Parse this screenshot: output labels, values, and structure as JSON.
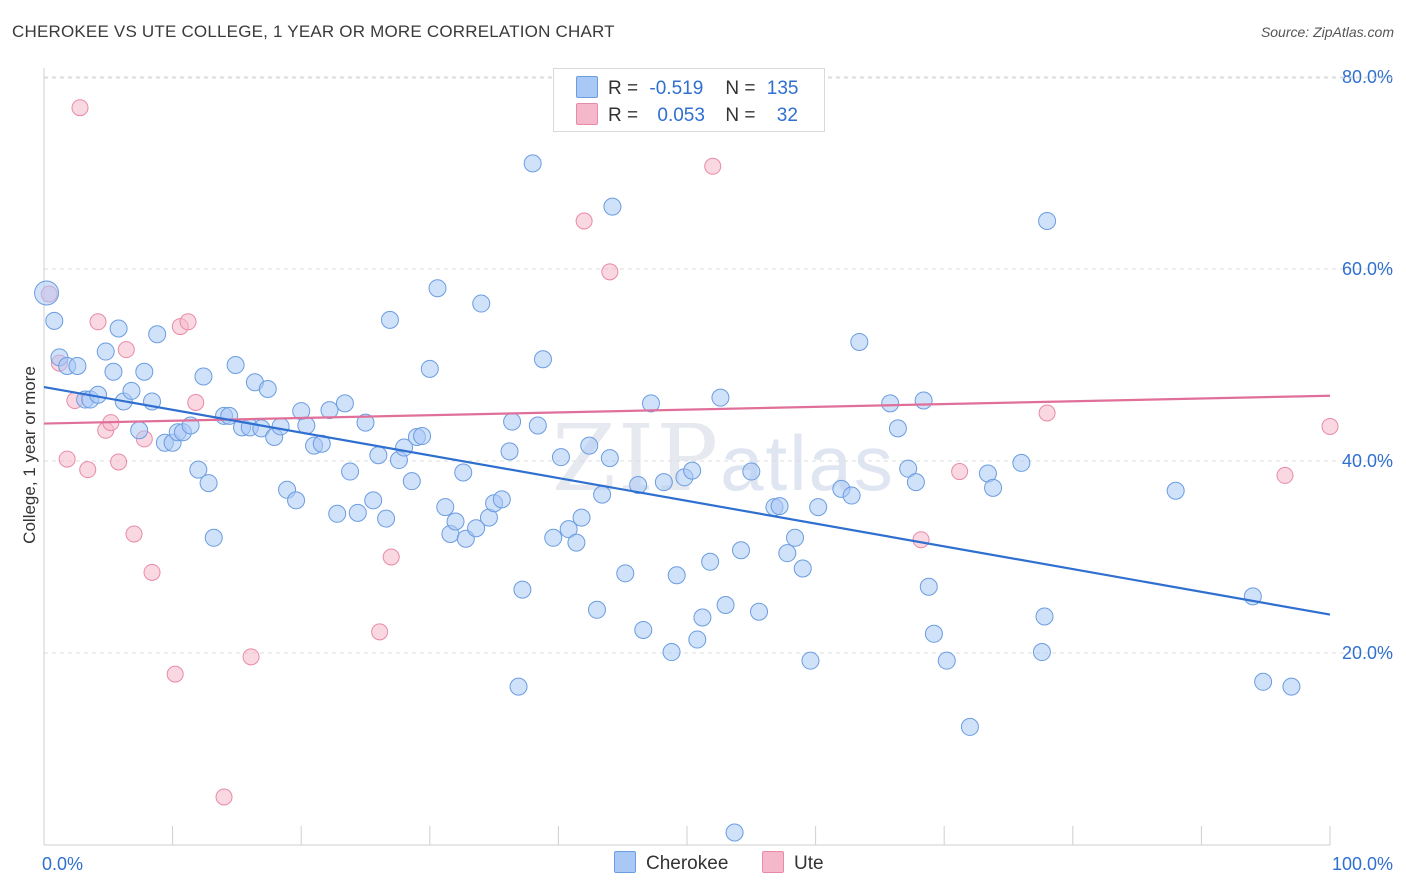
{
  "title": "CHEROKEE VS UTE COLLEGE, 1 YEAR OR MORE CORRELATION CHART",
  "source": "Source: ZipAtlas.com",
  "watermark": {
    "zip": "ZIP",
    "atlas": "atlas"
  },
  "legend": {
    "rows": [
      {
        "r_label": "R =",
        "r_value": "-0.519",
        "n_label": "N =",
        "n_value": "135",
        "color": "#a9c8f5"
      },
      {
        "r_label": "R =",
        "r_value": "0.053",
        "n_label": "N =",
        "n_value": "32",
        "color": "#f5b8cb"
      }
    ]
  },
  "bottom_legend": [
    {
      "name": "Cherokee",
      "color": "#a9c8f5"
    },
    {
      "name": "Ute",
      "color": "#f5b8cb"
    }
  ],
  "chart_data": {
    "type": "scatter",
    "ylabel": "College, 1 year or more",
    "xlabel": "",
    "xlim": [
      0,
      100
    ],
    "ylim": [
      0,
      82
    ],
    "x_tick_labels": [
      {
        "x": 0,
        "label": "0.0%"
      },
      {
        "x": 100,
        "label": "100.0%"
      }
    ],
    "y_tick_labels": [
      {
        "y": 20,
        "label": "20.0%"
      },
      {
        "y": 40,
        "label": "40.0%"
      },
      {
        "y": 60,
        "label": "60.0%"
      },
      {
        "y": 80,
        "label": "80.0%"
      }
    ],
    "grid": "horizontal dashed",
    "colors": {
      "cherokee_fill": "#a9c8f5",
      "cherokee_stroke": "#6b9de0",
      "cherokee_line": "#2f6fd0",
      "ute_fill": "#f5b8cb",
      "ute_stroke": "#e88aa8",
      "ute_line": "#e0709a",
      "tick_label": "#2f6fd0"
    },
    "series": [
      {
        "name": "Cherokee",
        "trend": {
          "x": [
            0,
            100
          ],
          "y": [
            47.7,
            24.0
          ]
        },
        "points": [
          [
            0.2,
            57.5
          ],
          [
            0.8,
            54.6
          ],
          [
            1.2,
            50.8
          ],
          [
            1.8,
            49.9
          ],
          [
            2.6,
            49.9
          ],
          [
            3.2,
            46.4
          ],
          [
            3.6,
            46.4
          ],
          [
            4.2,
            46.9
          ],
          [
            4.8,
            51.4
          ],
          [
            5.4,
            49.3
          ],
          [
            5.8,
            53.8
          ],
          [
            6.2,
            46.2
          ],
          [
            6.8,
            47.3
          ],
          [
            7.4,
            43.2
          ],
          [
            7.8,
            49.3
          ],
          [
            8.4,
            46.2
          ],
          [
            8.8,
            53.2
          ],
          [
            9.4,
            41.9
          ],
          [
            10.0,
            41.9
          ],
          [
            10.4,
            43.0
          ],
          [
            10.8,
            43.0
          ],
          [
            11.4,
            43.7
          ],
          [
            12.0,
            39.1
          ],
          [
            12.4,
            48.8
          ],
          [
            12.8,
            37.7
          ],
          [
            13.2,
            32.0
          ],
          [
            14.0,
            44.7
          ],
          [
            14.4,
            44.7
          ],
          [
            14.9,
            50.0
          ],
          [
            15.4,
            43.5
          ],
          [
            16.0,
            43.5
          ],
          [
            16.4,
            48.2
          ],
          [
            16.9,
            43.4
          ],
          [
            17.4,
            47.5
          ],
          [
            17.9,
            42.5
          ],
          [
            18.4,
            43.6
          ],
          [
            18.9,
            37.0
          ],
          [
            19.6,
            35.9
          ],
          [
            20.0,
            45.2
          ],
          [
            20.4,
            43.7
          ],
          [
            21.0,
            41.6
          ],
          [
            21.6,
            41.8
          ],
          [
            22.2,
            45.3
          ],
          [
            22.8,
            34.5
          ],
          [
            23.4,
            46.0
          ],
          [
            23.8,
            38.9
          ],
          [
            24.4,
            34.6
          ],
          [
            25.0,
            44.0
          ],
          [
            25.6,
            35.9
          ],
          [
            26.0,
            40.6
          ],
          [
            26.6,
            34.0
          ],
          [
            26.9,
            54.7
          ],
          [
            27.6,
            40.1
          ],
          [
            28.0,
            41.4
          ],
          [
            28.6,
            37.9
          ],
          [
            29.0,
            42.5
          ],
          [
            29.4,
            42.6
          ],
          [
            30.0,
            49.6
          ],
          [
            30.6,
            58.0
          ],
          [
            31.2,
            35.2
          ],
          [
            31.6,
            32.4
          ],
          [
            32.0,
            33.7
          ],
          [
            32.6,
            38.8
          ],
          [
            32.8,
            31.9
          ],
          [
            33.6,
            33.0
          ],
          [
            34.0,
            56.4
          ],
          [
            34.6,
            34.1
          ],
          [
            35.0,
            35.6
          ],
          [
            35.6,
            36.0
          ],
          [
            36.2,
            41.0
          ],
          [
            36.4,
            44.1
          ],
          [
            36.9,
            16.5
          ],
          [
            37.2,
            26.6
          ],
          [
            38.0,
            71.0
          ],
          [
            38.4,
            43.7
          ],
          [
            38.8,
            50.6
          ],
          [
            39.6,
            32.0
          ],
          [
            40.2,
            40.4
          ],
          [
            40.8,
            32.9
          ],
          [
            41.4,
            31.5
          ],
          [
            41.8,
            34.1
          ],
          [
            42.4,
            41.6
          ],
          [
            43.0,
            24.5
          ],
          [
            43.4,
            36.5
          ],
          [
            44.0,
            40.3
          ],
          [
            44.2,
            66.5
          ],
          [
            45.2,
            28.3
          ],
          [
            46.2,
            37.5
          ],
          [
            46.6,
            22.4
          ],
          [
            47.2,
            46.0
          ],
          [
            48.2,
            37.8
          ],
          [
            48.8,
            20.1
          ],
          [
            49.2,
            28.1
          ],
          [
            49.8,
            38.3
          ],
          [
            50.4,
            39.0
          ],
          [
            50.8,
            21.4
          ],
          [
            51.2,
            23.7
          ],
          [
            51.8,
            29.5
          ],
          [
            52.6,
            46.6
          ],
          [
            53.0,
            25.0
          ],
          [
            54.2,
            30.7
          ],
          [
            55.0,
            38.9
          ],
          [
            55.6,
            24.3
          ],
          [
            56.8,
            35.2
          ],
          [
            57.2,
            35.3
          ],
          [
            57.8,
            30.4
          ],
          [
            58.4,
            32.0
          ],
          [
            59.0,
            28.8
          ],
          [
            59.6,
            19.2
          ],
          [
            60.2,
            35.2
          ],
          [
            62.0,
            37.1
          ],
          [
            62.8,
            36.4
          ],
          [
            63.4,
            52.4
          ],
          [
            65.8,
            46.0
          ],
          [
            66.4,
            43.4
          ],
          [
            67.2,
            39.2
          ],
          [
            67.8,
            37.8
          ],
          [
            68.4,
            46.3
          ],
          [
            68.8,
            26.9
          ],
          [
            69.2,
            22.0
          ],
          [
            70.2,
            19.2
          ],
          [
            72.0,
            12.3
          ],
          [
            73.4,
            38.7
          ],
          [
            73.8,
            37.2
          ],
          [
            76.0,
            39.8
          ],
          [
            77.6,
            20.1
          ],
          [
            77.8,
            23.8
          ],
          [
            78.0,
            65.0
          ],
          [
            88.0,
            36.9
          ],
          [
            94.0,
            25.9
          ],
          [
            94.8,
            17.0
          ],
          [
            97.0,
            16.5
          ],
          [
            53.7,
            1.3
          ]
        ]
      },
      {
        "name": "Ute",
        "trend": {
          "x": [
            0,
            100
          ],
          "y": [
            43.9,
            46.8
          ]
        },
        "points": [
          [
            0.4,
            57.4
          ],
          [
            1.2,
            50.2
          ],
          [
            1.8,
            40.2
          ],
          [
            2.4,
            46.3
          ],
          [
            2.8,
            76.8
          ],
          [
            3.4,
            39.1
          ],
          [
            4.2,
            54.5
          ],
          [
            4.8,
            43.2
          ],
          [
            5.2,
            44.0
          ],
          [
            5.8,
            39.9
          ],
          [
            6.4,
            51.6
          ],
          [
            7.0,
            32.4
          ],
          [
            7.8,
            42.3
          ],
          [
            8.4,
            28.4
          ],
          [
            10.2,
            17.8
          ],
          [
            10.6,
            54.0
          ],
          [
            11.2,
            54.5
          ],
          [
            11.8,
            46.1
          ],
          [
            14.0,
            5.0
          ],
          [
            16.1,
            19.6
          ],
          [
            26.1,
            22.2
          ],
          [
            27.0,
            30.0
          ],
          [
            42.0,
            65.0
          ],
          [
            44.0,
            59.7
          ],
          [
            52.0,
            70.7
          ],
          [
            68.2,
            31.8
          ],
          [
            71.2,
            38.9
          ],
          [
            78.0,
            45.0
          ],
          [
            96.5,
            38.5
          ],
          [
            100.0,
            43.6
          ]
        ]
      }
    ]
  }
}
